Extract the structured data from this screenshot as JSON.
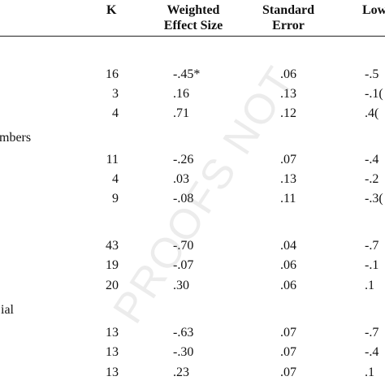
{
  "table": {
    "headers": {
      "k": "K",
      "effect_line1": "Weighted",
      "effect_line2": "Effect Size",
      "se_line1": "Standard",
      "se_line2": "Error",
      "lower_partial": "Low"
    },
    "section_labels": [
      "mbers",
      "ial"
    ],
    "rows": [
      {
        "k": "16",
        "es": "-.45*",
        "se": ".06",
        "lo": "-.5"
      },
      {
        "k": "3",
        "es": ".16",
        "se": ".13",
        "lo": "-.1("
      },
      {
        "k": "4",
        "es": ".71",
        "se": ".12",
        "lo": ".4("
      },
      {
        "k": "11",
        "es": "-.26",
        "se": ".07",
        "lo": "-.4"
      },
      {
        "k": "4",
        "es": ".03",
        "se": ".13",
        "lo": "-.2"
      },
      {
        "k": "9",
        "es": "-.08",
        "se": ".11",
        "lo": "-.3("
      },
      {
        "k": "43",
        "es": "-.70",
        "se": ".04",
        "lo": "-.7"
      },
      {
        "k": "19",
        "es": "-.07",
        "se": ".06",
        "lo": "-.1"
      },
      {
        "k": "20",
        "es": ".30",
        "se": ".06",
        "lo": ".1"
      },
      {
        "k": "13",
        "es": "-.63",
        "se": ".07",
        "lo": "-.7"
      },
      {
        "k": "13",
        "es": "-.30",
        "se": ".07",
        "lo": "-.4"
      },
      {
        "k": "13",
        "es": ".23",
        "se": ".07",
        "lo": ".1"
      }
    ]
  },
  "watermark": "PROOFS NOT"
}
